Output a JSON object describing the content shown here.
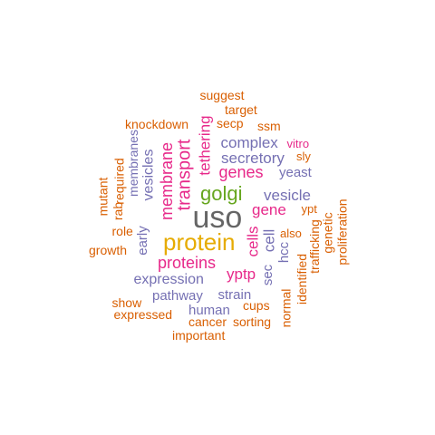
{
  "palette": {
    "orange": "#d95f02",
    "purple": "#7570b3",
    "magenta": "#e7298a",
    "green": "#66a61e",
    "gold": "#e6ab02",
    "gray": "#666666"
  },
  "words": [
    {
      "text": "uso",
      "color": "gray",
      "rotated": false
    },
    {
      "text": "protein",
      "color": "gold",
      "rotated": false
    },
    {
      "text": "golgi",
      "color": "green",
      "rotated": false
    },
    {
      "text": "transport",
      "color": "magenta",
      "rotated": true
    },
    {
      "text": "membrane",
      "color": "magenta",
      "rotated": true
    },
    {
      "text": "tethering",
      "color": "magenta",
      "rotated": true
    },
    {
      "text": "genes",
      "color": "magenta",
      "rotated": false
    },
    {
      "text": "gene",
      "color": "magenta",
      "rotated": false
    },
    {
      "text": "proteins",
      "color": "magenta",
      "rotated": false
    },
    {
      "text": "yptp",
      "color": "magenta",
      "rotated": false
    },
    {
      "text": "cells",
      "color": "magenta",
      "rotated": true
    },
    {
      "text": "complex",
      "color": "purple",
      "rotated": false
    },
    {
      "text": "secretory",
      "color": "purple",
      "rotated": false
    },
    {
      "text": "vesicle",
      "color": "purple",
      "rotated": false
    },
    {
      "text": "vesicles",
      "color": "purple",
      "rotated": true
    },
    {
      "text": "membranes",
      "color": "purple",
      "rotated": true
    },
    {
      "text": "expression",
      "color": "purple",
      "rotated": false
    },
    {
      "text": "early",
      "color": "purple",
      "rotated": true
    },
    {
      "text": "cell",
      "color": "purple",
      "rotated": true
    },
    {
      "text": "yeast",
      "color": "purple",
      "rotated": false
    },
    {
      "text": "pathway",
      "color": "purple",
      "rotated": false
    },
    {
      "text": "strain",
      "color": "purple",
      "rotated": false
    },
    {
      "text": "human",
      "color": "purple",
      "rotated": false
    },
    {
      "text": "sec",
      "color": "purple",
      "rotated": true
    },
    {
      "text": "hcc",
      "color": "purple",
      "rotated": true
    },
    {
      "text": "suggest",
      "color": "orange",
      "rotated": false
    },
    {
      "text": "target",
      "color": "orange",
      "rotated": false
    },
    {
      "text": "knockdown",
      "color": "orange",
      "rotated": false
    },
    {
      "text": "secp",
      "color": "orange",
      "rotated": false
    },
    {
      "text": "ssm",
      "color": "orange",
      "rotated": false
    },
    {
      "text": "vitro",
      "color": "magenta",
      "rotated": false
    },
    {
      "text": "sly",
      "color": "orange",
      "rotated": false
    },
    {
      "text": "ypt",
      "color": "orange",
      "rotated": false
    },
    {
      "text": "also",
      "color": "orange",
      "rotated": false
    },
    {
      "text": "mutant",
      "color": "orange",
      "rotated": true
    },
    {
      "text": "required",
      "color": "orange",
      "rotated": true
    },
    {
      "text": "rab",
      "color": "orange",
      "rotated": true
    },
    {
      "text": "role",
      "color": "orange",
      "rotated": false
    },
    {
      "text": "growth",
      "color": "orange",
      "rotated": false
    },
    {
      "text": "show",
      "color": "orange",
      "rotated": false
    },
    {
      "text": "expressed",
      "color": "orange",
      "rotated": false
    },
    {
      "text": "cancer",
      "color": "orange",
      "rotated": false
    },
    {
      "text": "sorting",
      "color": "orange",
      "rotated": false
    },
    {
      "text": "cups",
      "color": "orange",
      "rotated": false
    },
    {
      "text": "important",
      "color": "orange",
      "rotated": false
    },
    {
      "text": "normal",
      "color": "orange",
      "rotated": true
    },
    {
      "text": "identified",
      "color": "orange",
      "rotated": true
    },
    {
      "text": "trafficking",
      "color": "orange",
      "rotated": true
    },
    {
      "text": "genetic",
      "color": "orange",
      "rotated": true
    },
    {
      "text": "proliferation",
      "color": "orange",
      "rotated": true
    }
  ]
}
